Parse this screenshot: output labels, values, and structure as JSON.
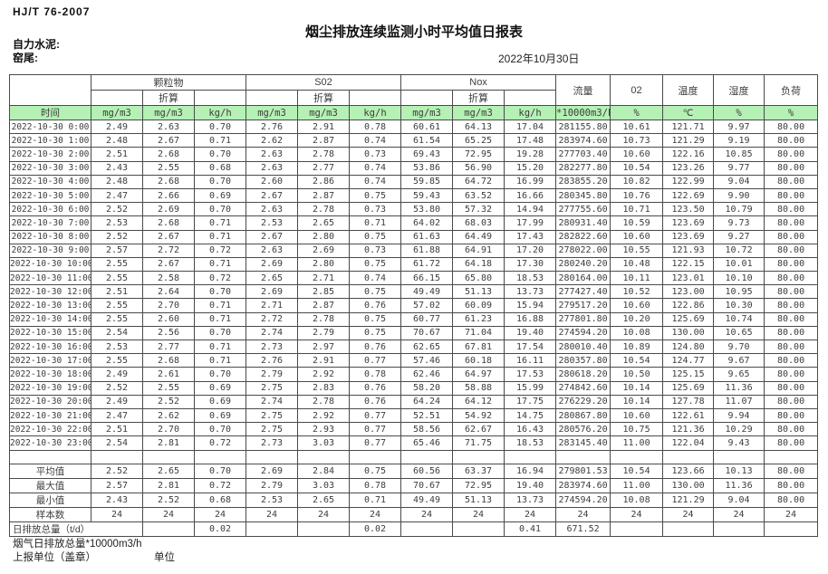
{
  "meta": {
    "standard": "HJ/T 76-2007",
    "title": "烟尘排放连续监测小时平均值日报表",
    "company": "自力水泥:",
    "site": "窑尾:",
    "date": "2022年10月30日"
  },
  "colors": {
    "header_green": "#b5f0b5"
  },
  "table": {
    "header": {
      "time_label": "时间",
      "pm_group": "颗粒物",
      "so2_group": "S02",
      "nox_group": "Nox",
      "converted_label": "折算",
      "flow_label": "流量",
      "o2_label": "02",
      "temp_label": "温度",
      "humidity_label": "湿度",
      "load_label": "负荷",
      "units": [
        "mg/m3",
        "mg/m3",
        "kg/h",
        "mg/m3",
        "mg/m3",
        "kg/h",
        "mg/m3",
        "mg/m3",
        "kg/h",
        "*10000m3/h",
        "%",
        "℃",
        "%",
        "%"
      ]
    },
    "rows": [
      {
        "label": "2022-10-30 0:00",
        "values": [
          "2.49",
          "2.63",
          "0.70",
          "2.76",
          "2.91",
          "0.78",
          "60.61",
          "64.13",
          "17.04",
          "281155.80",
          "10.61",
          "121.71",
          "9.97",
          "80.00"
        ]
      },
      {
        "label": "2022-10-30 1:00",
        "values": [
          "2.48",
          "2.67",
          "0.71",
          "2.62",
          "2.87",
          "0.74",
          "61.54",
          "65.25",
          "17.48",
          "283974.60",
          "10.73",
          "121.29",
          "9.19",
          "80.00"
        ]
      },
      {
        "label": "2022-10-30 2:00",
        "values": [
          "2.51",
          "2.68",
          "0.70",
          "2.63",
          "2.78",
          "0.73",
          "69.43",
          "72.95",
          "19.28",
          "277703.40",
          "10.60",
          "122.16",
          "10.85",
          "80.00"
        ]
      },
      {
        "label": "2022-10-30 3:00",
        "values": [
          "2.43",
          "2.55",
          "0.68",
          "2.63",
          "2.77",
          "0.74",
          "53.86",
          "56.90",
          "15.20",
          "282277.80",
          "10.54",
          "123.26",
          "9.77",
          "80.00"
        ]
      },
      {
        "label": "2022-10-30 4:00",
        "values": [
          "2.48",
          "2.68",
          "0.70",
          "2.60",
          "2.86",
          "0.74",
          "59.85",
          "64.72",
          "16.99",
          "283855.20",
          "10.82",
          "122.99",
          "9.04",
          "80.00"
        ]
      },
      {
        "label": "2022-10-30 5:00",
        "values": [
          "2.47",
          "2.66",
          "0.69",
          "2.67",
          "2.87",
          "0.75",
          "59.43",
          "63.52",
          "16.66",
          "280345.80",
          "10.76",
          "122.69",
          "9.90",
          "80.00"
        ]
      },
      {
        "label": "2022-10-30 6:00",
        "values": [
          "2.52",
          "2.69",
          "0.70",
          "2.63",
          "2.78",
          "0.73",
          "53.80",
          "57.32",
          "14.94",
          "277755.60",
          "10.71",
          "123.50",
          "10.79",
          "80.00"
        ]
      },
      {
        "label": "2022-10-30 7:00",
        "values": [
          "2.53",
          "2.68",
          "0.71",
          "2.53",
          "2.65",
          "0.71",
          "64.02",
          "68.03",
          "17.99",
          "280931.40",
          "10.59",
          "123.69",
          "9.73",
          "80.00"
        ]
      },
      {
        "label": "2022-10-30 8:00",
        "values": [
          "2.52",
          "2.67",
          "0.71",
          "2.67",
          "2.80",
          "0.75",
          "61.63",
          "64.49",
          "17.43",
          "282822.60",
          "10.60",
          "123.69",
          "9.27",
          "80.00"
        ]
      },
      {
        "label": "2022-10-30 9:00",
        "values": [
          "2.57",
          "2.72",
          "0.72",
          "2.63",
          "2.69",
          "0.73",
          "61.88",
          "64.91",
          "17.20",
          "278022.00",
          "10.55",
          "121.93",
          "10.72",
          "80.00"
        ]
      },
      {
        "label": "2022-10-30 10:00",
        "values": [
          "2.55",
          "2.67",
          "0.71",
          "2.69",
          "2.80",
          "0.75",
          "61.72",
          "64.18",
          "17.30",
          "280240.20",
          "10.48",
          "122.15",
          "10.01",
          "80.00"
        ]
      },
      {
        "label": "2022-10-30 11:00",
        "values": [
          "2.55",
          "2.58",
          "0.72",
          "2.65",
          "2.71",
          "0.74",
          "66.15",
          "65.80",
          "18.53",
          "280164.00",
          "10.11",
          "123.01",
          "10.10",
          "80.00"
        ]
      },
      {
        "label": "2022-10-30 12:00",
        "values": [
          "2.51",
          "2.64",
          "0.70",
          "2.69",
          "2.85",
          "0.75",
          "49.49",
          "51.13",
          "13.73",
          "277427.40",
          "10.52",
          "123.00",
          "10.95",
          "80.00"
        ]
      },
      {
        "label": "2022-10-30 13:00",
        "values": [
          "2.55",
          "2.70",
          "0.71",
          "2.71",
          "2.87",
          "0.76",
          "57.02",
          "60.09",
          "15.94",
          "279517.20",
          "10.60",
          "122.86",
          "10.30",
          "80.00"
        ]
      },
      {
        "label": "2022-10-30 14:00",
        "values": [
          "2.55",
          "2.60",
          "0.71",
          "2.72",
          "2.78",
          "0.75",
          "60.77",
          "61.23",
          "16.88",
          "277801.80",
          "10.20",
          "125.69",
          "10.74",
          "80.00"
        ]
      },
      {
        "label": "2022-10-30 15:00",
        "values": [
          "2.54",
          "2.56",
          "0.70",
          "2.74",
          "2.79",
          "0.75",
          "70.67",
          "71.04",
          "19.40",
          "274594.20",
          "10.08",
          "130.00",
          "10.65",
          "80.00"
        ]
      },
      {
        "label": "2022-10-30 16:00",
        "values": [
          "2.53",
          "2.77",
          "0.71",
          "2.73",
          "2.97",
          "0.76",
          "62.65",
          "67.81",
          "17.54",
          "280010.40",
          "10.89",
          "124.80",
          "9.70",
          "80.00"
        ]
      },
      {
        "label": "2022-10-30 17:00",
        "values": [
          "2.55",
          "2.68",
          "0.71",
          "2.76",
          "2.91",
          "0.77",
          "57.46",
          "60.18",
          "16.11",
          "280357.80",
          "10.54",
          "124.77",
          "9.67",
          "80.00"
        ]
      },
      {
        "label": "2022-10-30 18:00",
        "values": [
          "2.49",
          "2.61",
          "0.70",
          "2.79",
          "2.92",
          "0.78",
          "62.46",
          "64.97",
          "17.53",
          "280618.20",
          "10.50",
          "125.15",
          "9.65",
          "80.00"
        ]
      },
      {
        "label": "2022-10-30 19:00",
        "values": [
          "2.52",
          "2.55",
          "0.69",
          "2.75",
          "2.83",
          "0.76",
          "58.20",
          "58.88",
          "15.99",
          "274842.60",
          "10.14",
          "125.69",
          "11.36",
          "80.00"
        ]
      },
      {
        "label": "2022-10-30 20:00",
        "values": [
          "2.49",
          "2.52",
          "0.69",
          "2.74",
          "2.78",
          "0.76",
          "64.24",
          "64.12",
          "17.75",
          "276229.20",
          "10.14",
          "127.78",
          "11.07",
          "80.00"
        ]
      },
      {
        "label": "2022-10-30 21:00",
        "values": [
          "2.47",
          "2.62",
          "0.69",
          "2.75",
          "2.92",
          "0.77",
          "52.51",
          "54.92",
          "14.75",
          "280867.80",
          "10.60",
          "122.61",
          "9.94",
          "80.00"
        ]
      },
      {
        "label": "2022-10-30 22:00",
        "values": [
          "2.51",
          "2.70",
          "0.70",
          "2.75",
          "2.93",
          "0.77",
          "58.56",
          "62.67",
          "16.43",
          "280576.20",
          "10.75",
          "121.36",
          "10.29",
          "80.00"
        ]
      },
      {
        "label": "2022-10-30 23:00",
        "values": [
          "2.54",
          "2.81",
          "0.72",
          "2.73",
          "3.03",
          "0.77",
          "65.46",
          "71.75",
          "18.53",
          "283145.40",
          "11.00",
          "122.04",
          "9.43",
          "80.00"
        ]
      }
    ],
    "summary_rows": [
      {
        "label": "",
        "cjk": false,
        "values": [
          "",
          "",
          "",
          "",
          "",
          "",
          "",
          "",
          "",
          "",
          "",
          "",
          "",
          ""
        ]
      },
      {
        "label": "平均值",
        "cjk": true,
        "values": [
          "2.52",
          "2.65",
          "0.70",
          "2.69",
          "2.84",
          "0.75",
          "60.56",
          "63.37",
          "16.94",
          "279801.53",
          "10.54",
          "123.66",
          "10.13",
          "80.00"
        ]
      },
      {
        "label": "最大值",
        "cjk": true,
        "values": [
          "2.57",
          "2.81",
          "0.72",
          "2.79",
          "3.03",
          "0.78",
          "70.67",
          "72.95",
          "19.40",
          "283974.60",
          "11.00",
          "130.00",
          "11.36",
          "80.00"
        ]
      },
      {
        "label": "最小值",
        "cjk": true,
        "values": [
          "2.43",
          "2.52",
          "0.68",
          "2.53",
          "2.65",
          "0.71",
          "49.49",
          "51.13",
          "13.73",
          "274594.20",
          "10.08",
          "121.29",
          "9.04",
          "80.00"
        ]
      },
      {
        "label": "样本数",
        "cjk": true,
        "values": [
          "24",
          "24",
          "24",
          "24",
          "24",
          "24",
          "24",
          "24",
          "24",
          "24",
          "24",
          "24",
          "24",
          "24"
        ]
      },
      {
        "label": "日排放总量（t/d）",
        "cjk": true,
        "left": true,
        "colspan": 2,
        "values": [
          "",
          "0.02",
          "",
          "",
          "0.02",
          "",
          "",
          "0.41",
          "671.52",
          "",
          "",
          "",
          ""
        ]
      }
    ]
  },
  "footer": {
    "daily_flow_total": "烟气日排放总量*10000m3/h",
    "report_unit": "上报单位（盖章）",
    "unit": "单位"
  }
}
